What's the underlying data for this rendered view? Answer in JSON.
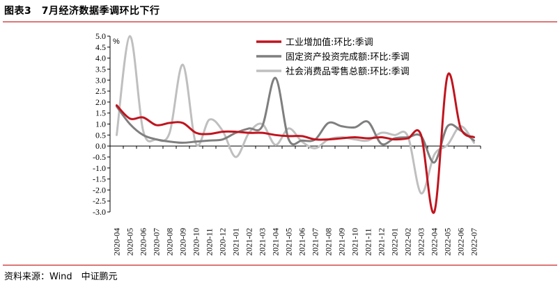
{
  "header": {
    "title": "图表3　7月经济数据季调环比下行"
  },
  "footer": {
    "source": "资料来源：Wind　中证鹏元"
  },
  "chart_data": {
    "type": "line",
    "title": "图表3　7月经济数据季调环比下行",
    "unit_label": "%",
    "ylim": [
      -3.0,
      5.0
    ],
    "yticks": [
      "5.0",
      "4.5",
      "4.0",
      "3.5",
      "3.0",
      "2.5",
      "2.0",
      "1.5",
      "1.0",
      "0.5",
      "0.0",
      "-0.5",
      "-1.0",
      "-1.5",
      "-2.0",
      "-2.5",
      "-3.0"
    ],
    "categories": [
      "2020-04",
      "2020-05",
      "2020-06",
      "2020-07",
      "2020-08",
      "2020-09",
      "2020-10",
      "2020-11",
      "2020-12",
      "2021-01",
      "2021-02",
      "2021-03",
      "2021-04",
      "2021-05",
      "2021-06",
      "2021-07",
      "2021-08",
      "2021-09",
      "2021-10",
      "2021-11",
      "2021-12",
      "2022-01",
      "2022-02",
      "2022-03",
      "2022-04",
      "2022-05",
      "2022-06",
      "2022-07"
    ],
    "grid": false,
    "legend_position": "top-right",
    "series": [
      {
        "name": "工业增加值:环比:季调",
        "color": "#c0141e",
        "values": [
          1.85,
          1.25,
          1.3,
          0.95,
          1.05,
          1.05,
          0.6,
          0.55,
          0.65,
          0.65,
          0.6,
          0.6,
          0.5,
          0.45,
          0.45,
          0.3,
          0.3,
          0.35,
          0.4,
          0.35,
          0.4,
          0.3,
          0.35,
          0.5,
          -3.0,
          3.2,
          0.8,
          0.4
        ]
      },
      {
        "name": "固定资产投资完成额:环比:季调",
        "color": "#7f7f7f",
        "values": [
          1.8,
          1.0,
          0.5,
          0.3,
          0.2,
          0.15,
          0.2,
          0.25,
          0.3,
          0.6,
          0.8,
          0.9,
          3.1,
          0.3,
          0.25,
          0.3,
          1.05,
          0.9,
          0.85,
          1.1,
          0.1,
          0.35,
          0.4,
          0.45,
          -0.75,
          0.9,
          0.7,
          0.25
        ]
      },
      {
        "name": "社会消费品零售总额:环比:季调",
        "color": "#bfbfbf",
        "values": [
          0.5,
          5.0,
          0.7,
          0.3,
          0.6,
          3.7,
          0.1,
          1.2,
          0.7,
          -0.5,
          0.6,
          1.0,
          0.05,
          0.8,
          0.2,
          -0.1,
          0.3,
          0.4,
          0.3,
          0.25,
          0.6,
          0.5,
          0.45,
          -2.15,
          -0.4,
          0.05,
          0.9,
          0.15
        ]
      }
    ]
  }
}
